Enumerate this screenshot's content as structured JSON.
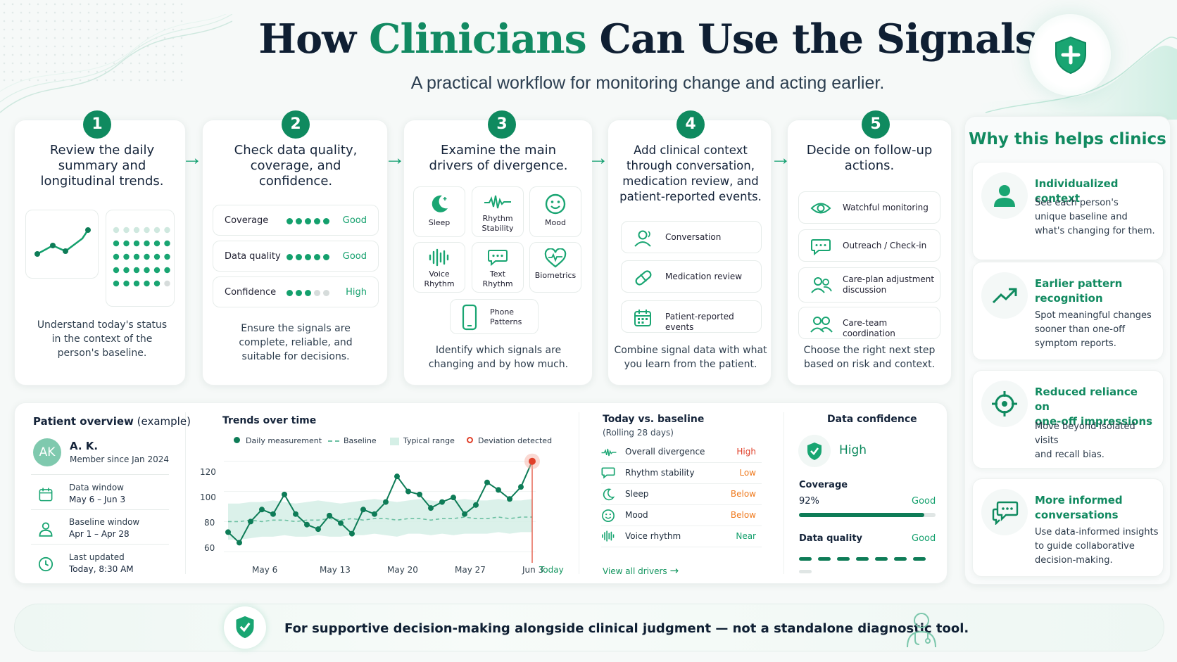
{
  "header": {
    "title_part1": "How",
    "title_highlight": "Clinicians",
    "title_part2": "Can Use the Signals",
    "subtitle": "A practical workflow for monitoring change and acting earlier."
  },
  "steps": [
    {
      "num": "1",
      "title_lines": [
        "Review the daily",
        "summary and",
        "longitudinal trends."
      ],
      "desc_lines": [
        "Understand today's status",
        "in the context of the",
        "person's baseline."
      ]
    },
    {
      "num": "2",
      "title_lines": [
        "Check data quality,",
        "coverage, and",
        "confidence."
      ],
      "desc_lines": [
        "Ensure the signals are",
        "complete, reliable, and",
        "suitable for decisions."
      ]
    },
    {
      "num": "3",
      "title_lines": [
        "Examine the main",
        "drivers of divergence."
      ],
      "desc_lines": [
        "Identify which signals are",
        "changing and by how much."
      ]
    },
    {
      "num": "4",
      "title_lines": [
        "Add clinical context",
        "through conversation,",
        "medication review, and",
        "patient-reported events."
      ],
      "desc_lines": [
        "Combine signal data with what",
        "you learn from the patient."
      ]
    },
    {
      "num": "5",
      "title_lines": [
        "Decide on follow-up",
        "actions."
      ],
      "desc_lines": [
        "Choose the right next step",
        "based on risk and context."
      ]
    }
  ],
  "quality_rows": [
    {
      "label": "Coverage",
      "filled": 5,
      "total": 5,
      "value": "Good"
    },
    {
      "label": "Data quality",
      "filled": 5,
      "total": 5,
      "value": "Good"
    },
    {
      "label": "Confidence",
      "filled": 3,
      "total": 5,
      "value": "High"
    }
  ],
  "drivers": [
    {
      "icon": "moon-icon",
      "label_lines": [
        "Sleep"
      ]
    },
    {
      "icon": "waveform-icon",
      "label_lines": [
        "Rhythm",
        "Stability"
      ]
    },
    {
      "icon": "smiley-icon",
      "label_lines": [
        "Mood"
      ]
    },
    {
      "icon": "voice-bars-icon",
      "label_lines": [
        "Voice",
        "Rhythm"
      ]
    },
    {
      "icon": "chat-bubble-icon",
      "label_lines": [
        "Text",
        "Rhythm"
      ]
    },
    {
      "icon": "heart-pulse-icon",
      "label_lines": [
        "Biometrics"
      ]
    },
    {
      "icon": "phone-icon",
      "label_lines": [
        "Phone",
        "Patterns"
      ]
    }
  ],
  "context_items": [
    {
      "icon": "person-talk-icon",
      "label": "Conversation"
    },
    {
      "icon": "pill-icon",
      "label": "Medication review"
    },
    {
      "icon": "calendar-icon",
      "label": "Patient-reported events"
    }
  ],
  "actions": [
    {
      "icon": "eye-icon",
      "label_lines": [
        "Watchful monitoring"
      ]
    },
    {
      "icon": "chat-icon",
      "label_lines": [
        "Outreach / Check-in"
      ]
    },
    {
      "icon": "people-icon",
      "label_lines": [
        "Care-plan adjustment",
        "discussion"
      ]
    },
    {
      "icon": "team-icon",
      "label_lines": [
        "Care-team coordination"
      ]
    }
  ],
  "why": {
    "title": "Why this helps clinics",
    "items": [
      {
        "icon": "person-icon",
        "heading_lines": [
          "Individualized context"
        ],
        "desc_lines": [
          "See each person's",
          "unique baseline and",
          "what's changing for them."
        ]
      },
      {
        "icon": "trend-up-icon",
        "heading_lines": [
          "Earlier pattern",
          "recognition"
        ],
        "desc_lines": [
          "Spot meaningful changes",
          "sooner than one-off",
          "symptom reports."
        ]
      },
      {
        "icon": "crosshair-icon",
        "heading_lines": [
          "Reduced reliance on",
          "one-off impressions"
        ],
        "desc_lines": [
          "Move beyond isolated visits",
          "and recall bias."
        ]
      },
      {
        "icon": "chat-dots-icon",
        "heading_lines": [
          "More informed",
          "conversations"
        ],
        "desc_lines": [
          "Use data-informed insights",
          "to guide collaborative",
          "decision-making."
        ]
      }
    ]
  },
  "patient": {
    "heading": "Patient overview",
    "heading_note": "(example)",
    "initials": "AK",
    "name": "A. K.",
    "member_since": "Member since Jan 2024",
    "rows": [
      {
        "icon": "calendar-icon",
        "label": "Data window",
        "value": "May 6 – Jun 3"
      },
      {
        "icon": "person-icon",
        "label": "Baseline window",
        "value": "Apr 1 – Apr 28"
      },
      {
        "icon": "clock-icon",
        "label": "Last updated",
        "value": "Today, 8:30 AM"
      }
    ]
  },
  "chart_data": {
    "type": "line",
    "title": "Trends over time",
    "legend": [
      "Daily measurement",
      "Baseline",
      "Typical range",
      "Deviation detected"
    ],
    "legend_placement": "top",
    "y_ticks": [
      120,
      100,
      80,
      60
    ],
    "ylim": [
      55,
      125
    ],
    "x_tick_labels": [
      {
        "label": "May 6",
        "day": 3
      },
      {
        "label": "May 13",
        "day": 9
      },
      {
        "label": "May 20",
        "day": 15
      },
      {
        "label": "May 27",
        "day": 21
      },
      {
        "label": "Jun 3",
        "day": 27
      },
      {
        "label": "Today",
        "day": 28.5
      }
    ],
    "series": [
      {
        "name": "Daily measurement",
        "values": [
          73,
          66,
          80,
          88,
          85,
          98,
          85,
          78,
          75,
          84,
          79,
          72,
          88,
          85,
          93,
          110,
          100,
          98,
          89,
          93,
          96,
          85,
          91,
          106,
          101,
          95,
          103,
          120
        ]
      },
      {
        "name": "Baseline",
        "values": [
          80,
          80,
          81,
          80,
          81,
          81,
          80,
          81,
          81,
          82,
          81,
          82,
          81,
          82,
          82,
          81,
          82,
          82,
          81,
          82,
          82,
          83,
          82,
          82,
          83,
          82,
          83,
          83
        ]
      }
    ],
    "typical_range": {
      "lower": [
        68,
        68,
        69,
        70,
        70,
        71,
        70,
        70,
        71,
        70,
        70,
        71,
        71,
        72,
        71,
        70,
        72,
        72,
        71,
        72,
        71,
        72,
        72,
        72,
        73,
        72,
        73,
        73
      ],
      "upper": [
        92,
        92,
        93,
        93,
        94,
        93,
        92,
        93,
        94,
        93,
        92,
        93,
        94,
        95,
        94,
        93,
        94,
        95,
        94,
        93,
        94,
        95,
        94,
        94,
        95,
        94,
        94,
        95
      ]
    },
    "deviation_index": 27
  },
  "baseline": {
    "heading": "Today vs. baseline",
    "sub": "(Rolling 28 days)",
    "rows": [
      {
        "icon": "waveform-icon",
        "name": "Overall divergence",
        "value": "High",
        "color": "#e0402a"
      },
      {
        "icon": "chat-bubble-icon",
        "name": "Rhythm stability",
        "value": "Low",
        "color": "#ef7a1e"
      },
      {
        "icon": "moon-icon",
        "name": "Sleep",
        "value": "Below",
        "color": "#ef7a1e"
      },
      {
        "icon": "smiley-icon",
        "name": "Mood",
        "value": "Below",
        "color": "#ef7a1e"
      },
      {
        "icon": "voice-bars-icon",
        "name": "Voice rhythm",
        "value": "Near",
        "color": "#14a06d"
      }
    ],
    "link": "View all drivers"
  },
  "confidence": {
    "heading": "Data confidence",
    "level": "High",
    "coverage_label": "Coverage",
    "coverage_pct": "92%",
    "coverage_fraction": 0.92,
    "coverage_value": "Good",
    "quality_label": "Data quality",
    "quality_value": "Good",
    "quality_filled": 7,
    "quality_total": 8
  },
  "footer": {
    "text": "For supportive decision-making alongside clinical judgment — not a standalone diagnostic tool."
  },
  "colors": {
    "accent": "#128a62",
    "bright": "#14a06d",
    "alert": "#e0402a",
    "warn": "#ef7a1e",
    "navy": "#0f1f33"
  }
}
